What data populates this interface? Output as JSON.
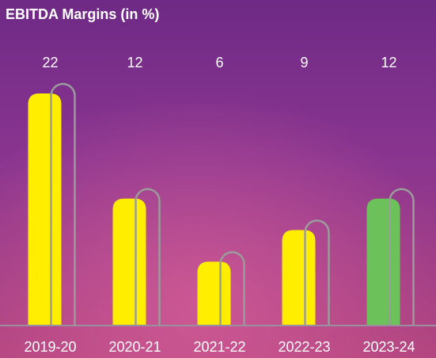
{
  "chart_data": {
    "type": "bar",
    "title": "EBITDA Margins (in %)",
    "categories": [
      "2019-20",
      "2020-21",
      "2021-22",
      "2022-23",
      "2023-24"
    ],
    "values": [
      22,
      12,
      6,
      9,
      12
    ],
    "colors": [
      "#ffee00",
      "#ffee00",
      "#ffee00",
      "#ffee00",
      "#6cc15a"
    ]
  }
}
